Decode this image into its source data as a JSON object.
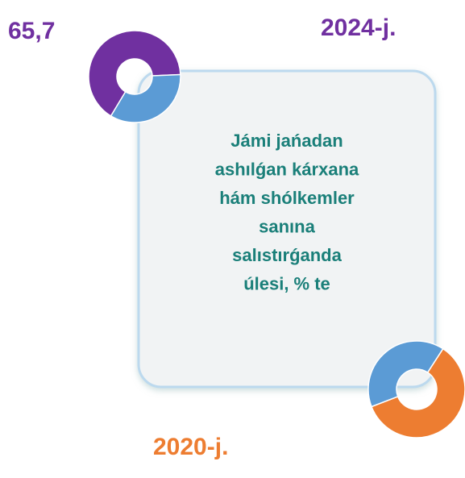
{
  "chart_data": [
    {
      "type": "pie",
      "title": "2024-j.",
      "values": [
        65.7,
        34.3
      ],
      "value_labels": [
        "65,7",
        null
      ],
      "colors": [
        "#7030a0",
        "#5b9bd5"
      ],
      "donut": true
    },
    {
      "type": "pie",
      "title": "2020-j.",
      "values": [
        60,
        40
      ],
      "colors": [
        "#ed7d31",
        "#5b9bd5"
      ],
      "donut": true
    }
  ],
  "caption": [
    "Jámi jańadan",
    "ashılǵan kárxana",
    "hám shólkemler",
    "sanına",
    "salıstırǵanda",
    "úlesi, % te"
  ]
}
